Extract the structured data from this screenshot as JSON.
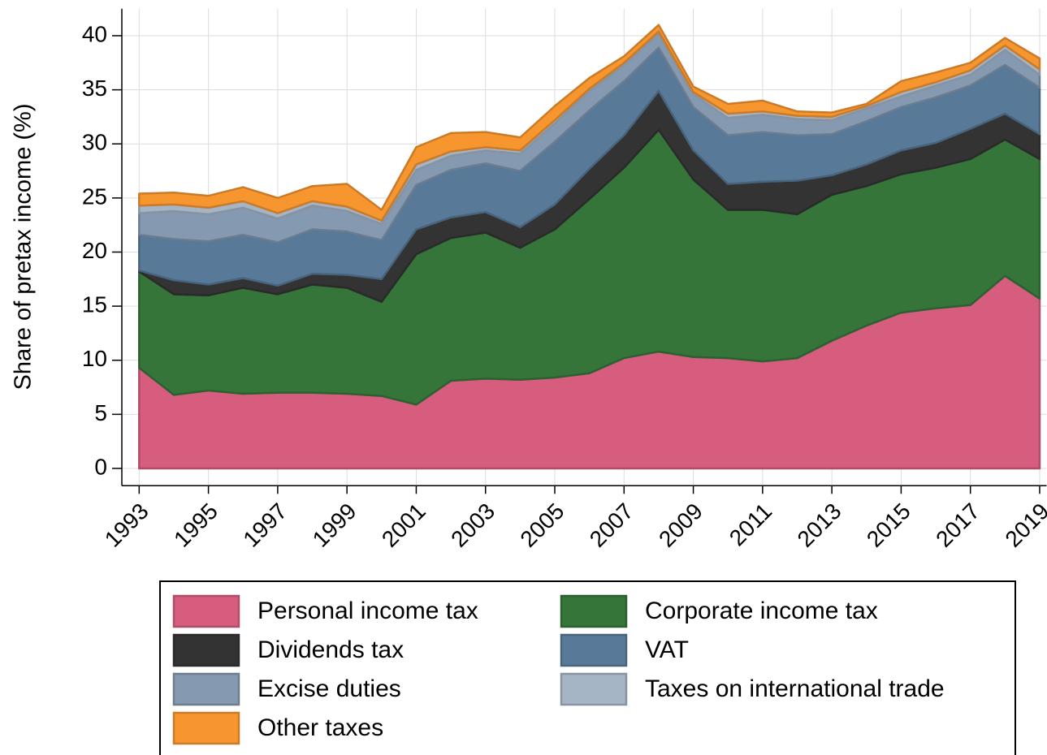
{
  "chart_data": {
    "type": "stacked-area",
    "y_label": "Share of pretax income (%)",
    "x": [
      1993,
      1994,
      1995,
      1996,
      1997,
      1998,
      1999,
      2000,
      2001,
      2002,
      2003,
      2004,
      2005,
      2006,
      2007,
      2008,
      2009,
      2010,
      2011,
      2012,
      2013,
      2014,
      2015,
      2016,
      2017,
      2018,
      2019
    ],
    "xlim": [
      1992.5,
      2019.2
    ],
    "xticks": [
      1993,
      1995,
      1997,
      1999,
      2001,
      2003,
      2005,
      2007,
      2009,
      2011,
      2013,
      2015,
      2017,
      2019
    ],
    "ylim": [
      -1.6,
      42.5
    ],
    "yticks": [
      0,
      5,
      10,
      15,
      20,
      25,
      30,
      35,
      40
    ],
    "grid": true,
    "series": [
      {
        "name": "Personal income tax",
        "color": "#d65d7d",
        "values": [
          9.3,
          6.8,
          7.2,
          6.9,
          7.0,
          7.0,
          6.9,
          6.7,
          5.9,
          8.1,
          8.3,
          8.2,
          8.4,
          8.8,
          10.2,
          10.8,
          10.3,
          10.2,
          9.9,
          10.2,
          11.8,
          13.2,
          14.4,
          14.8,
          15.1,
          17.8,
          15.7
        ]
      },
      {
        "name": "Corporate income tax",
        "color": "#35753a",
        "values": [
          8.9,
          9.3,
          8.8,
          9.8,
          9.1,
          10.0,
          9.8,
          8.7,
          13.9,
          13.2,
          13.5,
          12.2,
          13.7,
          16.1,
          17.6,
          20.5,
          16.4,
          13.7,
          14.0,
          13.3,
          13.5,
          12.9,
          12.8,
          13.0,
          13.5,
          12.6,
          12.9
        ]
      },
      {
        "name": "Dividends tax",
        "color": "#333333",
        "values": [
          0.1,
          1.3,
          1.0,
          0.9,
          0.8,
          1.0,
          1.2,
          2.1,
          2.3,
          1.9,
          1.9,
          1.9,
          2.3,
          2.8,
          3.0,
          3.6,
          2.7,
          2.4,
          2.6,
          3.1,
          1.8,
          2.0,
          2.2,
          2.3,
          2.8,
          2.4,
          2.3
        ]
      },
      {
        "name": "VAT",
        "color": "#587a98",
        "values": [
          3.3,
          3.8,
          4.0,
          4.0,
          4.0,
          4.1,
          4.0,
          3.6,
          4.1,
          4.4,
          4.5,
          5.2,
          5.8,
          5.4,
          5.0,
          4.0,
          4.0,
          4.5,
          4.6,
          4.2,
          3.8,
          4.0,
          4.0,
          4.2,
          4.0,
          4.5,
          4.3
        ]
      },
      {
        "name": "Excise duties",
        "color": "#8599b0",
        "values": [
          2.0,
          2.6,
          2.5,
          2.5,
          2.2,
          2.2,
          1.9,
          1.5,
          1.4,
          1.3,
          1.2,
          1.6,
          1.7,
          1.8,
          1.5,
          1.3,
          1.2,
          1.6,
          1.6,
          1.5,
          1.3,
          1.2,
          1.0,
          1.1,
          1.0,
          1.4,
          1.2
        ]
      },
      {
        "name": "Taxes on international trade",
        "color": "#a6b5c6",
        "values": [
          0.7,
          0.6,
          0.6,
          0.6,
          0.5,
          0.4,
          0.4,
          0.3,
          0.5,
          0.4,
          0.3,
          0.3,
          0.3,
          0.2,
          0.2,
          0.2,
          0.2,
          0.4,
          0.3,
          0.3,
          0.3,
          0.2,
          0.4,
          0.3,
          0.4,
          0.4,
          0.5
        ]
      },
      {
        "name": "Other taxes",
        "color": "#f7962f",
        "values": [
          1.1,
          1.1,
          1.1,
          1.3,
          1.4,
          1.4,
          2.1,
          1.0,
          1.6,
          1.7,
          1.4,
          1.2,
          1.3,
          1.0,
          0.6,
          0.6,
          0.5,
          0.9,
          1.0,
          0.4,
          0.4,
          0.2,
          1.0,
          0.9,
          0.7,
          0.7,
          1.0
        ]
      }
    ]
  }
}
